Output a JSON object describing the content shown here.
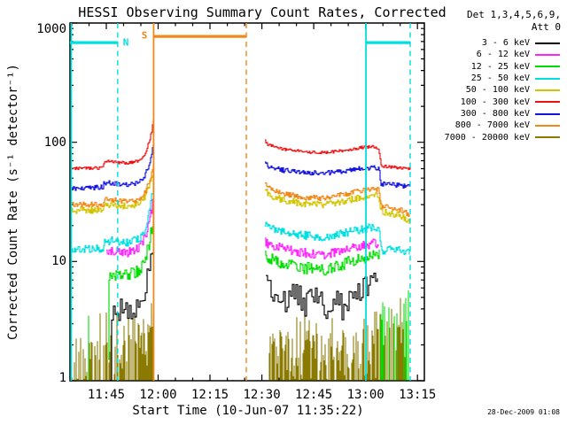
{
  "page": {
    "background": "#ffffff"
  },
  "title": "HESSI Observing Summary Count Rates, Corrected",
  "timestamp": "28-Dec-2009 01:08",
  "palette": {
    "black": "#000000",
    "magenta": "#ff22ff",
    "green": "#00dd00",
    "cyan": "#00dfdf",
    "yellow": "#d2c400",
    "red": "#ee1111",
    "blue": "#1414dd",
    "orange": "#f08818",
    "olive": "#8a7a00"
  },
  "chart_data": {
    "type": "line",
    "title": "HESSI Observing Summary Count Rates, Corrected",
    "xlabel": "Start Time (10-Jun-07 11:35:22)",
    "ylabel": "Corrected Count Rate (s⁻¹ detector⁻¹)",
    "grid": false,
    "x_axis": {
      "start_time": "11:34:30",
      "minutes_total": 102.5,
      "major_ticks": [
        {
          "label": "11:45",
          "t": 10.5
        },
        {
          "label": "12:00",
          "t": 25.5
        },
        {
          "label": "12:15",
          "t": 40.5
        },
        {
          "label": "12:30",
          "t": 55.5
        },
        {
          "label": "12:45",
          "t": 70.5
        },
        {
          "label": "13:00",
          "t": 85.5
        },
        {
          "label": "13:15",
          "t": 100.5
        }
      ],
      "minor_start_t": 0.5,
      "minor_step_min": 5
    },
    "y_axis": {
      "scale": "log",
      "min": 1,
      "max": 1000,
      "major_ticks": [
        {
          "label": "1",
          "v": 1
        },
        {
          "label": "10",
          "v": 10
        },
        {
          "label": "100",
          "v": 100
        },
        {
          "label": "1000",
          "v": 1000
        }
      ]
    },
    "legend": {
      "position": "right",
      "header_line1": "Det 1,3,4,5,6,9,",
      "header_line2": "Att 0",
      "entries": [
        {
          "label": "3 - 6 keV",
          "color": "black"
        },
        {
          "label": "6 - 12 keV",
          "color": "magenta"
        },
        {
          "label": "12 - 25 keV",
          "color": "green"
        },
        {
          "label": "25 - 50 keV",
          "color": "cyan"
        },
        {
          "label": "50 - 100 keV",
          "color": "yellow"
        },
        {
          "label": "100 - 300 keV",
          "color": "red"
        },
        {
          "label": "300 - 800 keV",
          "color": "blue"
        },
        {
          "label": "800 - 7000 keV",
          "color": "orange"
        },
        {
          "label": "7000 - 20000 keV",
          "color": "olive"
        }
      ]
    },
    "flags": {
      "vlines": [
        {
          "t": 0.35,
          "color": "cyan",
          "dash": false
        },
        {
          "t": 13.8,
          "color": "cyan",
          "dash": true
        },
        {
          "t": 24.2,
          "color": "orange",
          "dash": false
        },
        {
          "t": 51.0,
          "color": "orange",
          "dash": true
        },
        {
          "t": 85.6,
          "color": "cyan",
          "dash": false
        },
        {
          "t": 98.4,
          "color": "cyan",
          "dash": true
        }
      ],
      "bars": [
        {
          "t0": 0.0,
          "t1": 13.8,
          "v": 685,
          "color": "cyan"
        },
        {
          "t0": 24.2,
          "t1": 51.0,
          "v": 772,
          "color": "orange"
        },
        {
          "t0": 85.6,
          "t1": 98.4,
          "v": 685,
          "color": "cyan"
        }
      ],
      "labels": [
        {
          "text": "N",
          "x": 142,
          "y": 48,
          "color": "cyan"
        },
        {
          "text": "S",
          "x": 163,
          "y": 40,
          "color": "orange"
        }
      ]
    },
    "series": [
      {
        "name": "7000 - 20000 keV",
        "color": "olive",
        "mode": "fill",
        "seed": 11,
        "segments": [
          {
            "gapP": 0.3,
            "keys": [
              [
                0.3,
                1.8
              ],
              [
                15,
                1.8
              ],
              [
                16.5,
                2.6
              ],
              [
                18.5,
                3.2
              ],
              [
                20.5,
                2.6
              ],
              [
                22,
                2.4
              ],
              [
                23,
                3.0
              ],
              [
                24.15,
                4.6
              ]
            ]
          },
          {
            "gapP": 0.2,
            "keys": [
              [
                57.6,
                1.9
              ],
              [
                80,
                1.9
              ],
              [
                88,
                2.0
              ],
              [
                89.3,
                2.2
              ],
              [
                89.8,
                2.9
              ],
              [
                94,
                3.1
              ],
              [
                97.9,
                2.7
              ]
            ]
          }
        ]
      },
      {
        "name": "12 - 25 keV night spikes",
        "color": "green",
        "mode": "fill",
        "seed": 12,
        "segments": [
          {
            "gapP": 0.93,
            "keys": [
              [
                3,
                4.5
              ],
              [
                10.8,
                6.5
              ]
            ]
          },
          {
            "gapP": 0.68,
            "keys": [
              [
                89.7,
                3.2
              ],
              [
                97.8,
                4.2
              ]
            ]
          }
        ]
      },
      {
        "name": "3 - 6 keV",
        "color": "black",
        "mode": "step",
        "seed": 13,
        "noise": 0.1,
        "dipP": 0.1,
        "dipAmp": 0.28,
        "stepPx": 2,
        "segments": [
          {
            "keys": [
              [
                11.6,
                1
              ],
              [
                11.7,
                3.8
              ],
              [
                17,
                3.9
              ],
              [
                20,
                4.4
              ],
              [
                21.5,
                5.5
              ],
              [
                22.8,
                8
              ],
              [
                23.6,
                11.5
              ],
              [
                24.15,
                16
              ]
            ]
          },
          {
            "keys": [
              [
                56.6,
                6.3
              ],
              [
                59,
                5.2
              ],
              [
                62,
                4.4
              ],
              [
                65,
                5.8
              ],
              [
                68,
                4.2
              ],
              [
                71,
                5.6
              ],
              [
                74,
                4.1
              ],
              [
                77,
                5.2
              ],
              [
                80,
                4.6
              ],
              [
                83,
                5.6
              ],
              [
                86,
                6.2
              ],
              [
                89.2,
                6.7
              ]
            ]
          }
        ]
      },
      {
        "name": "6 - 12 keV",
        "color": "magenta",
        "mode": "step",
        "seed": 14,
        "noise": 0.04,
        "segments": [
          {
            "keys": [
              [
                10.4,
                1
              ],
              [
                10.5,
                12.5
              ],
              [
                17,
                12
              ],
              [
                20,
                13
              ],
              [
                21.5,
                15.5
              ],
              [
                22.8,
                21
              ],
              [
                23.6,
                28
              ],
              [
                24.15,
                37
              ]
            ]
          },
          {
            "keys": [
              [
                56.4,
                14.5
              ],
              [
                62,
                12.5
              ],
              [
                68,
                11.8
              ],
              [
                74,
                11.5
              ],
              [
                80,
                12.5
              ],
              [
                84,
                13.5
              ],
              [
                88,
                14.2
              ],
              [
                89.3,
                14
              ]
            ]
          }
        ]
      },
      {
        "name": "12 - 25 keV",
        "color": "green",
        "mode": "step",
        "seed": 15,
        "noise": 0.05,
        "segments": [
          {
            "keys": [
              [
                11.0,
                1
              ],
              [
                11.1,
                7.6
              ],
              [
                17,
                7.8
              ],
              [
                20,
                8.5
              ],
              [
                21.5,
                10
              ],
              [
                22.8,
                14
              ],
              [
                23.6,
                19
              ],
              [
                24.15,
                26
              ]
            ]
          },
          {
            "keys": [
              [
                56.4,
                11
              ],
              [
                62,
                9.5
              ],
              [
                68,
                8.8
              ],
              [
                74,
                8.6
              ],
              [
                80,
                9.8
              ],
              [
                84,
                10.5
              ],
              [
                88,
                11.2
              ],
              [
                89.4,
                11.5
              ]
            ]
          }
        ]
      },
      {
        "name": "25 - 50 keV",
        "color": "cyan",
        "mode": "step",
        "seed": 16,
        "noise": 0.035,
        "segments": [
          {
            "keys": [
              [
                0.3,
                12.5
              ],
              [
                9.6,
                13
              ],
              [
                9.8,
                15
              ],
              [
                17,
                14.5
              ],
              [
                20,
                15.5
              ],
              [
                21.5,
                18
              ],
              [
                22.8,
                26
              ],
              [
                23.6,
                35
              ],
              [
                24.15,
                47
              ]
            ]
          },
          {
            "keys": [
              [
                56.4,
                20
              ],
              [
                62,
                17.5
              ],
              [
                68,
                16.5
              ],
              [
                74,
                16
              ],
              [
                80,
                17.5
              ],
              [
                84,
                18.5
              ],
              [
                88,
                19.5
              ],
              [
                89.3,
                19
              ],
              [
                90,
                12.5
              ],
              [
                94,
                12.5
              ],
              [
                98.2,
                12
              ]
            ]
          }
        ]
      },
      {
        "name": "50 - 100 keV",
        "color": "yellow",
        "mode": "step",
        "seed": 17,
        "noise": 0.028,
        "segments": [
          {
            "keys": [
              [
                0.3,
                27
              ],
              [
                9.6,
                27
              ],
              [
                9.8,
                30
              ],
              [
                17,
                29
              ],
              [
                20,
                30
              ],
              [
                21.5,
                34
              ],
              [
                22.8,
                42
              ],
              [
                23.6,
                50
              ],
              [
                24.15,
                59
              ]
            ]
          },
          {
            "keys": [
              [
                56.4,
                40
              ],
              [
                57.5,
                36
              ],
              [
                62,
                32.5
              ],
              [
                68,
                30.5
              ],
              [
                74,
                30
              ],
              [
                80,
                32.5
              ],
              [
                84,
                34.5
              ],
              [
                88,
                36
              ],
              [
                89.3,
                35
              ],
              [
                89.9,
                26
              ],
              [
                94,
                25
              ],
              [
                97,
                23
              ],
              [
                98.2,
                21
              ]
            ]
          }
        ]
      },
      {
        "name": "100 - 300 keV",
        "color": "red",
        "mode": "step",
        "seed": 18,
        "noise": 0.012,
        "segments": [
          {
            "keys": [
              [
                0.3,
                60
              ],
              [
                9.6,
                61
              ],
              [
                9.8,
                70
              ],
              [
                13,
                68
              ],
              [
                17,
                67
              ],
              [
                20,
                70
              ],
              [
                21.5,
                78
              ],
              [
                22.8,
                100
              ],
              [
                23.6,
                125
              ],
              [
                24.15,
                158
              ]
            ]
          },
          {
            "keys": [
              [
                56.4,
                104
              ],
              [
                57.2,
                95
              ],
              [
                62,
                87
              ],
              [
                68,
                83
              ],
              [
                74,
                82
              ],
              [
                80,
                86
              ],
              [
                84,
                90
              ],
              [
                88,
                92
              ],
              [
                89.3,
                88
              ],
              [
                89.9,
                63
              ],
              [
                93,
                62
              ],
              [
                98.3,
                60
              ]
            ]
          }
        ]
      },
      {
        "name": "300 - 800 keV",
        "color": "blue",
        "mode": "step",
        "seed": 19,
        "noise": 0.02,
        "segments": [
          {
            "keys": [
              [
                0.3,
                41
              ],
              [
                9.6,
                42
              ],
              [
                9.8,
                46
              ],
              [
                13,
                45
              ],
              [
                17,
                44
              ],
              [
                20,
                46
              ],
              [
                21.5,
                52
              ],
              [
                22.8,
                65
              ],
              [
                23.6,
                80
              ],
              [
                24.15,
                96
              ]
            ]
          },
          {
            "keys": [
              [
                56.4,
                71
              ],
              [
                57.5,
                62
              ],
              [
                62,
                58
              ],
              [
                68,
                56
              ],
              [
                74,
                55
              ],
              [
                80,
                58
              ],
              [
                84,
                60
              ],
              [
                88,
                62
              ],
              [
                89.3,
                60
              ],
              [
                89.9,
                45
              ],
              [
                94,
                44
              ],
              [
                98.3,
                42
              ]
            ]
          }
        ]
      },
      {
        "name": "800 - 7000 keV",
        "color": "orange",
        "mode": "step",
        "seed": 20,
        "noise": 0.022,
        "segments": [
          {
            "keys": [
              [
                0.3,
                30
              ],
              [
                9.6,
                30
              ],
              [
                9.8,
                33
              ],
              [
                17,
                32
              ],
              [
                20,
                33
              ],
              [
                21.5,
                37
              ],
              [
                22.8,
                47
              ],
              [
                23.6,
                56
              ],
              [
                24.15,
                67
              ]
            ]
          },
          {
            "keys": [
              [
                56.4,
                45
              ],
              [
                57.5,
                41
              ],
              [
                62,
                37
              ],
              [
                68,
                34.5
              ],
              [
                74,
                34
              ],
              [
                80,
                37
              ],
              [
                84,
                39
              ],
              [
                88,
                41
              ],
              [
                89.3,
                40
              ],
              [
                89.9,
                29
              ],
              [
                94,
                28
              ],
              [
                97,
                26
              ],
              [
                98.2,
                24
              ]
            ]
          }
        ]
      }
    ]
  }
}
